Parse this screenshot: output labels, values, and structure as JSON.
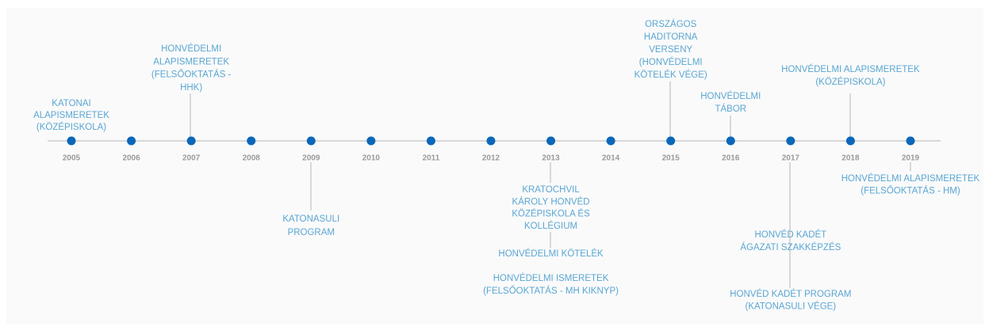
{
  "years": [
    "2005",
    "2006",
    "2007",
    "2008",
    "2009",
    "2010",
    "2011",
    "2012",
    "2013",
    "2014",
    "2015",
    "2016",
    "2017",
    "2018",
    "2019"
  ],
  "events": [
    {
      "lines": [
        "KATONAI",
        "ALAPISMERETEK",
        "(KÖZÉPISKOLA)"
      ]
    },
    {
      "lines": [
        "HONVÉDELMI",
        "ALAPISMERETEK",
        "(FELSŐOKTATÁS  -",
        "HHK)"
      ]
    },
    {
      "lines": [
        "KATONASULI",
        "PROGRAM"
      ]
    },
    {
      "lines": [
        "KRATOCHVIL",
        "KÁROLY HONVÉD",
        "KÖZÉPISKOLA  ÉS",
        "KOLLÉGIUM"
      ]
    },
    {
      "lines": [
        "HONVÉDELMI  KÖTELÉK"
      ]
    },
    {
      "lines": [
        "HONVÉDELMI  ISMERETEK",
        "(FELSŐOKTATÁS  - MH KIKNYP)"
      ]
    },
    {
      "lines": [
        "ORSZÁGOS",
        "HADITORNA",
        "VERSENY",
        "(HONVÉDELMI",
        "KÖTELÉK VÉGE)"
      ]
    },
    {
      "lines": [
        "HONVÉDELMI",
        "TÁBOR"
      ]
    },
    {
      "lines": [
        "HONVÉD  KADÉT",
        "ÁGAZATI  SZAKKÉPZÉS"
      ]
    },
    {
      "lines": [
        "HONVÉD  KADÉT  PROGRAM",
        "(KATONASULI  VÉGE)"
      ]
    },
    {
      "lines": [
        "HONVÉDELMI  ALAPISMERETEK",
        "(KÖZÉPISKOLA)"
      ]
    },
    {
      "lines": [
        "HONVÉDELMI  ALAPISMERETEK",
        "(FELSŐOKTATÁS   - HM)"
      ]
    }
  ]
}
